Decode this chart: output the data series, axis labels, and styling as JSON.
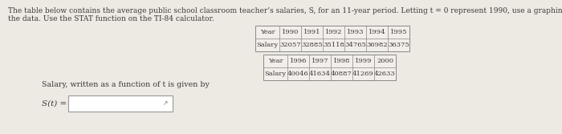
{
  "bg_color": "#ede9e3",
  "title_line1": "The table below contains the average public school classroom teacher’s salaries, S, for an 11-year period. Letting t = 0 represent 1990, use a graphing utility to find a linear model for",
  "title_line2": "the data. Use the STAT function on the TI-84 calculator.",
  "title_fontsize": 6.5,
  "table1_headers": [
    "Year",
    "1990",
    "1991",
    "1992",
    "1993",
    "1994",
    "1995"
  ],
  "table1_salary": [
    "Salary",
    "32057",
    "32885",
    "35118",
    "34765",
    "36982",
    "36375"
  ],
  "table2_headers": [
    "Year",
    "1996",
    "1997",
    "1998",
    "1999",
    "2000"
  ],
  "table2_salary": [
    "Salary",
    "40046",
    "41634",
    "40887",
    "41269",
    "42633"
  ],
  "salary_label": "Salary, written as a function of t is given by",
  "salary_label_fontsize": 6.8,
  "st_label": "S(t) =",
  "st_fontsize": 7.5,
  "text_color": "#3a3a3a",
  "table_fontsize": 6.0,
  "table_bg": "#f2eeea",
  "table_border": "#888888",
  "input_box_bg": "#ffffff",
  "input_box_border": "#999999"
}
